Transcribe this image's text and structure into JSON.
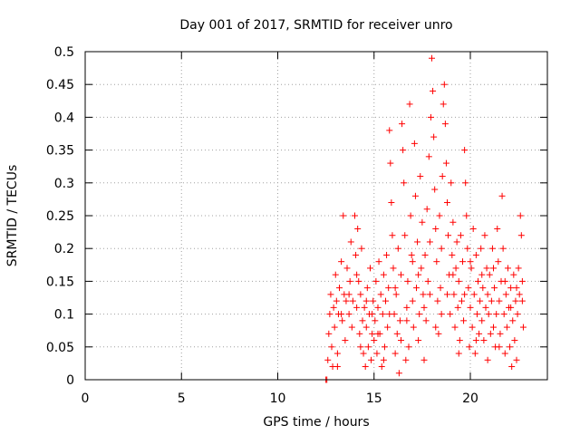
{
  "chart_data": {
    "type": "scatter",
    "title": "Day 001 of 2017, SRMTID for receiver unro",
    "xlabel": "GPS time / hours",
    "ylabel": "SRMTID / TECUs",
    "xlim": [
      0,
      24
    ],
    "ylim": [
      0,
      0.5
    ],
    "x_ticks": [
      0,
      5,
      10,
      15,
      20
    ],
    "y_ticks": [
      0,
      0.05,
      0.1,
      0.15,
      0.2,
      0.25,
      0.3,
      0.35,
      0.4,
      0.45,
      0.5
    ],
    "x_tick_labels": [
      "0",
      "5",
      "10",
      "15",
      "20"
    ],
    "y_tick_labels": [
      "0",
      "0.05",
      "0.1",
      "0.15",
      "0.2",
      "0.25",
      "0.3",
      "0.35",
      "0.4",
      "0.45",
      "0.5"
    ],
    "grid": true,
    "legend": "none",
    "marker": "+",
    "color": "#ff0000",
    "series": [
      {
        "points": [
          [
            12.5,
            0.0
          ],
          [
            12.55,
            0.0
          ],
          [
            12.6,
            0.03
          ],
          [
            12.65,
            0.07
          ],
          [
            12.7,
            0.1
          ],
          [
            12.75,
            0.13
          ],
          [
            12.8,
            0.05
          ],
          [
            12.85,
            0.02
          ],
          [
            12.9,
            0.11
          ],
          [
            12.95,
            0.08
          ],
          [
            13.0,
            0.16
          ],
          [
            13.05,
            0.12
          ],
          [
            13.1,
            0.04
          ],
          [
            13.15,
            0.1
          ],
          [
            13.2,
            0.14
          ],
          [
            13.3,
            0.18
          ],
          [
            13.35,
            0.09
          ],
          [
            13.4,
            0.25
          ],
          [
            13.45,
            0.13
          ],
          [
            13.5,
            0.06
          ],
          [
            13.55,
            0.12
          ],
          [
            13.6,
            0.17
          ],
          [
            13.7,
            0.1
          ],
          [
            13.75,
            0.15
          ],
          [
            13.8,
            0.21
          ],
          [
            13.85,
            0.08
          ],
          [
            13.9,
            0.12
          ],
          [
            14.0,
            0.25
          ],
          [
            14.05,
            0.19
          ],
          [
            14.1,
            0.11
          ],
          [
            14.15,
            0.23
          ],
          [
            14.2,
            0.15
          ],
          [
            14.25,
            0.07
          ],
          [
            14.3,
            0.13
          ],
          [
            14.35,
            0.2
          ],
          [
            14.4,
            0.09
          ],
          [
            14.45,
            0.04
          ],
          [
            14.5,
            0.11
          ],
          [
            14.55,
            0.02
          ],
          [
            14.6,
            0.08
          ],
          [
            14.65,
            0.14
          ],
          [
            14.7,
            0.05
          ],
          [
            14.75,
            0.1
          ],
          [
            14.8,
            0.17
          ],
          [
            14.85,
            0.03
          ],
          [
            14.9,
            0.07
          ],
          [
            14.95,
            0.12
          ],
          [
            15.0,
            0.06
          ],
          [
            15.05,
            0.09
          ],
          [
            15.1,
            0.15
          ],
          [
            15.15,
            0.04
          ],
          [
            15.2,
            0.11
          ],
          [
            15.25,
            0.18
          ],
          [
            15.3,
            0.07
          ],
          [
            15.35,
            0.13
          ],
          [
            15.4,
            0.02
          ],
          [
            15.45,
            0.1
          ],
          [
            15.5,
            0.16
          ],
          [
            15.55,
            0.05
          ],
          [
            15.6,
            0.12
          ],
          [
            15.65,
            0.19
          ],
          [
            15.7,
            0.08
          ],
          [
            15.75,
            0.14
          ],
          [
            15.8,
            0.38
          ],
          [
            15.85,
            0.33
          ],
          [
            15.9,
            0.27
          ],
          [
            15.95,
            0.22
          ],
          [
            16.0,
            0.17
          ],
          [
            16.05,
            0.1
          ],
          [
            16.1,
            0.04
          ],
          [
            16.15,
            0.13
          ],
          [
            16.2,
            0.07
          ],
          [
            16.25,
            0.2
          ],
          [
            16.3,
            0.01
          ],
          [
            16.35,
            0.09
          ],
          [
            16.4,
            0.16
          ],
          [
            16.45,
            0.39
          ],
          [
            16.5,
            0.35
          ],
          [
            16.55,
            0.3
          ],
          [
            16.6,
            0.22
          ],
          [
            16.65,
            0.03
          ],
          [
            16.7,
            0.11
          ],
          [
            16.75,
            0.15
          ],
          [
            16.8,
            0.05
          ],
          [
            16.85,
            0.42
          ],
          [
            16.9,
            0.25
          ],
          [
            16.95,
            0.19
          ],
          [
            17.0,
            0.12
          ],
          [
            17.05,
            0.08
          ],
          [
            17.1,
            0.36
          ],
          [
            17.15,
            0.28
          ],
          [
            17.2,
            0.14
          ],
          [
            17.25,
            0.21
          ],
          [
            17.3,
            0.06
          ],
          [
            17.35,
            0.1
          ],
          [
            17.4,
            0.31
          ],
          [
            17.45,
            0.17
          ],
          [
            17.5,
            0.24
          ],
          [
            17.55,
            0.13
          ],
          [
            17.6,
            0.03
          ],
          [
            17.65,
            0.19
          ],
          [
            17.7,
            0.09
          ],
          [
            17.75,
            0.26
          ],
          [
            17.8,
            0.15
          ],
          [
            17.85,
            0.34
          ],
          [
            17.9,
            0.21
          ],
          [
            17.95,
            0.4
          ],
          [
            18.0,
            0.49
          ],
          [
            18.05,
            0.44
          ],
          [
            18.1,
            0.37
          ],
          [
            18.15,
            0.29
          ],
          [
            18.2,
            0.23
          ],
          [
            18.25,
            0.18
          ],
          [
            18.3,
            0.12
          ],
          [
            18.35,
            0.07
          ],
          [
            18.4,
            0.25
          ],
          [
            18.45,
            0.14
          ],
          [
            18.5,
            0.2
          ],
          [
            18.55,
            0.31
          ],
          [
            18.6,
            0.42
          ],
          [
            18.65,
            0.45
          ],
          [
            18.7,
            0.39
          ],
          [
            18.75,
            0.33
          ],
          [
            18.8,
            0.27
          ],
          [
            18.85,
            0.22
          ],
          [
            18.9,
            0.16
          ],
          [
            18.95,
            0.1
          ],
          [
            19.0,
            0.3
          ],
          [
            19.05,
            0.19
          ],
          [
            19.1,
            0.24
          ],
          [
            19.15,
            0.13
          ],
          [
            19.2,
            0.08
          ],
          [
            19.25,
            0.17
          ],
          [
            19.3,
            0.21
          ],
          [
            19.35,
            0.11
          ],
          [
            19.4,
            0.15
          ],
          [
            19.45,
            0.06
          ],
          [
            19.5,
            0.22
          ],
          [
            19.55,
            0.12
          ],
          [
            19.6,
            0.18
          ],
          [
            19.65,
            0.09
          ],
          [
            19.7,
            0.35
          ],
          [
            19.75,
            0.3
          ],
          [
            19.8,
            0.25
          ],
          [
            19.85,
            0.2
          ],
          [
            19.9,
            0.14
          ],
          [
            19.95,
            0.05
          ],
          [
            20.0,
            0.11
          ],
          [
            20.05,
            0.17
          ],
          [
            20.1,
            0.08
          ],
          [
            20.15,
            0.23
          ],
          [
            20.2,
            0.13
          ],
          [
            20.25,
            0.04
          ],
          [
            20.3,
            0.19
          ],
          [
            20.35,
            0.1
          ],
          [
            20.4,
            0.15
          ],
          [
            20.45,
            0.07
          ],
          [
            20.5,
            0.12
          ],
          [
            20.55,
            0.2
          ],
          [
            20.6,
            0.09
          ],
          [
            20.65,
            0.14
          ],
          [
            20.7,
            0.06
          ],
          [
            20.75,
            0.22
          ],
          [
            20.8,
            0.11
          ],
          [
            20.85,
            0.17
          ],
          [
            20.9,
            0.03
          ],
          [
            20.95,
            0.1
          ],
          [
            21.0,
            0.16
          ],
          [
            21.05,
            0.07
          ],
          [
            21.1,
            0.12
          ],
          [
            21.15,
            0.2
          ],
          [
            21.2,
            0.08
          ],
          [
            21.25,
            0.14
          ],
          [
            21.3,
            0.05
          ],
          [
            21.35,
            0.1
          ],
          [
            21.4,
            0.23
          ],
          [
            21.45,
            0.18
          ],
          [
            21.5,
            0.12
          ],
          [
            21.55,
            0.07
          ],
          [
            21.6,
            0.15
          ],
          [
            21.65,
            0.28
          ],
          [
            21.7,
            0.2
          ],
          [
            21.75,
            0.1
          ],
          [
            21.8,
            0.04
          ],
          [
            21.85,
            0.13
          ],
          [
            21.9,
            0.08
          ],
          [
            21.95,
            0.17
          ],
          [
            22.0,
            0.11
          ],
          [
            22.05,
            0.05
          ],
          [
            22.1,
            0.14
          ],
          [
            22.15,
            0.02
          ],
          [
            22.2,
            0.09
          ],
          [
            22.25,
            0.16
          ],
          [
            22.3,
            0.06
          ],
          [
            22.35,
            0.12
          ],
          [
            22.4,
            0.03
          ],
          [
            22.45,
            0.1
          ],
          [
            22.5,
            0.17
          ],
          [
            22.55,
            0.13
          ],
          [
            22.6,
            0.25
          ],
          [
            22.65,
            0.22
          ],
          [
            22.7,
            0.15
          ],
          [
            22.75,
            0.08
          ],
          [
            13.1,
            0.02
          ],
          [
            13.3,
            0.1
          ],
          [
            13.7,
            0.13
          ],
          [
            14.1,
            0.16
          ],
          [
            14.3,
            0.05
          ],
          [
            14.6,
            0.12
          ],
          [
            14.9,
            0.1
          ],
          [
            15.2,
            0.07
          ],
          [
            15.5,
            0.03
          ],
          [
            15.8,
            0.1
          ],
          [
            16.1,
            0.14
          ],
          [
            16.4,
            0.06
          ],
          [
            16.7,
            0.09
          ],
          [
            17.0,
            0.18
          ],
          [
            17.3,
            0.16
          ],
          [
            17.6,
            0.11
          ],
          [
            17.9,
            0.13
          ],
          [
            18.2,
            0.08
          ],
          [
            18.5,
            0.1
          ],
          [
            18.8,
            0.13
          ],
          [
            19.1,
            0.16
          ],
          [
            19.4,
            0.04
          ],
          [
            19.7,
            0.13
          ],
          [
            20.0,
            0.18
          ],
          [
            20.3,
            0.06
          ],
          [
            20.6,
            0.16
          ],
          [
            20.9,
            0.13
          ],
          [
            21.2,
            0.17
          ],
          [
            21.5,
            0.05
          ],
          [
            21.8,
            0.15
          ],
          [
            22.1,
            0.11
          ],
          [
            22.4,
            0.14
          ],
          [
            22.7,
            0.12
          ]
        ]
      }
    ]
  }
}
